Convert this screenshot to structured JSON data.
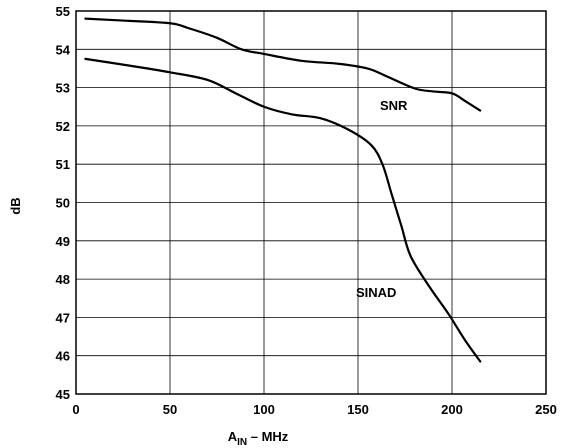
{
  "chart_data": {
    "type": "line",
    "title": "",
    "xlabel_main": "A",
    "xlabel_sub": "IN",
    "xlabel_rest": " – MHz",
    "ylabel": "dB",
    "xlim": [
      0,
      250
    ],
    "ylim": [
      45,
      55
    ],
    "xticks": [
      0,
      50,
      100,
      150,
      200,
      250
    ],
    "yticks": [
      45,
      46,
      47,
      48,
      49,
      50,
      51,
      52,
      53,
      54,
      55
    ],
    "grid": true,
    "series": [
      {
        "name": "SNR",
        "values": [
          [
            5,
            54.8
          ],
          [
            25,
            54.75
          ],
          [
            50,
            54.68
          ],
          [
            60,
            54.55
          ],
          [
            75,
            54.3
          ],
          [
            88,
            54.0
          ],
          [
            100,
            53.88
          ],
          [
            120,
            53.7
          ],
          [
            140,
            53.62
          ],
          [
            155,
            53.5
          ],
          [
            165,
            53.3
          ],
          [
            180,
            52.98
          ],
          [
            190,
            52.9
          ],
          [
            200,
            52.85
          ],
          [
            207,
            52.65
          ],
          [
            215,
            52.4
          ]
        ]
      },
      {
        "name": "SINAD",
        "values": [
          [
            5,
            53.75
          ],
          [
            25,
            53.6
          ],
          [
            50,
            53.4
          ],
          [
            70,
            53.2
          ],
          [
            85,
            52.85
          ],
          [
            100,
            52.5
          ],
          [
            115,
            52.3
          ],
          [
            130,
            52.2
          ],
          [
            145,
            51.9
          ],
          [
            157,
            51.5
          ],
          [
            163,
            51.0
          ],
          [
            168,
            50.2
          ],
          [
            173,
            49.4
          ],
          [
            178,
            48.6
          ],
          [
            188,
            47.8
          ],
          [
            198,
            47.1
          ],
          [
            207,
            46.4
          ],
          [
            215,
            45.85
          ]
        ]
      }
    ]
  }
}
